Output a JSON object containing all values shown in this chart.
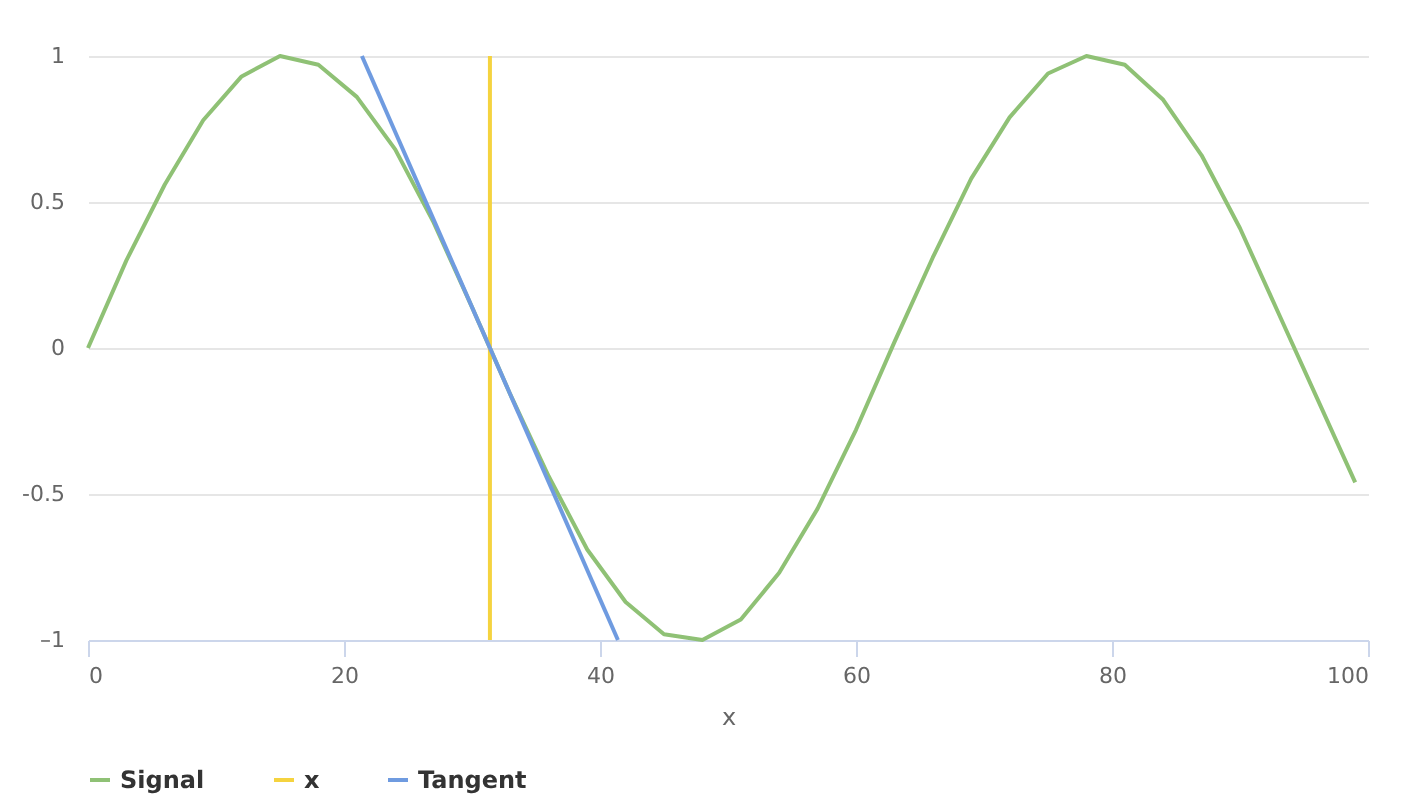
{
  "chart_data": {
    "type": "line",
    "xlabel": "x",
    "x": [
      0,
      3,
      6,
      9,
      12,
      15,
      18,
      21,
      24,
      27,
      30,
      33,
      36,
      39,
      42,
      45,
      48,
      51,
      54,
      57,
      60,
      63,
      66,
      69,
      72,
      75,
      78,
      81,
      84,
      87,
      90,
      93,
      96,
      99
    ],
    "series": [
      {
        "name": "Signal",
        "color": "#8fc175",
        "values": [
          0,
          0.3,
          0.56,
          0.78,
          0.93,
          1.0,
          0.97,
          0.86,
          0.68,
          0.43,
          0.14,
          -0.16,
          -0.44,
          -0.69,
          -0.87,
          -0.98,
          -1.0,
          -0.93,
          -0.77,
          -0.55,
          -0.28,
          0.02,
          0.31,
          0.58,
          0.79,
          0.94,
          1.0,
          0.97,
          0.85,
          0.66,
          0.41,
          0.12,
          -0.17,
          -0.46
        ]
      },
      {
        "name": "x",
        "color": "#f5d33f",
        "type": "line",
        "x": [
          31.4,
          31.4
        ],
        "values": [
          -1,
          1
        ]
      },
      {
        "name": "Tangent",
        "color": "#6f9be0",
        "type": "line",
        "x": [
          21.4,
          41.4
        ],
        "values": [
          1,
          -1
        ]
      }
    ],
    "xlim": [
      0,
      100
    ],
    "xticks": [
      0,
      20,
      40,
      60,
      80,
      100
    ],
    "ylim": [
      -1,
      1
    ],
    "yticks": [
      {
        "value": -1,
        "label": "–1"
      },
      -0.5,
      0,
      0.5,
      1
    ],
    "grid": "y",
    "legend": "bottom"
  }
}
